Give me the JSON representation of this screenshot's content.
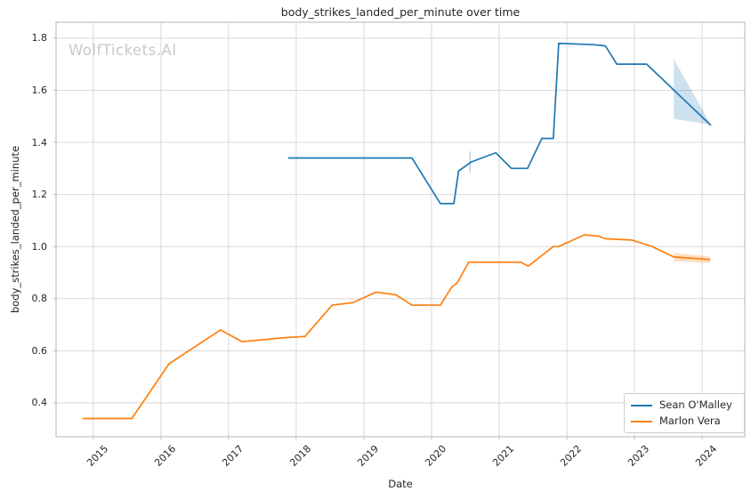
{
  "watermark": "WolfTickets.AI",
  "chart_data": {
    "type": "line",
    "title": "body_strikes_landed_per_minute over time",
    "xlabel": "Date",
    "ylabel": "body_strikes_landed_per_minute",
    "grid": true,
    "legend_position": "lower right",
    "xlim": [
      2014.45,
      2024.63
    ],
    "ylim": [
      0.27,
      1.861
    ],
    "x_ticks": [
      2015,
      2016,
      2017,
      2018,
      2019,
      2020,
      2021,
      2022,
      2023,
      2024
    ],
    "y_ticks": [
      0.4,
      0.6,
      0.8,
      1.0,
      1.2,
      1.4,
      1.6,
      1.8
    ],
    "colors": {
      "background": "#ffffff",
      "grid": "#d8d8d8",
      "spine": "#c7c7c7",
      "tick_mark": "#bdbdbd",
      "text": "#262626",
      "watermark": "#c9c9c9"
    },
    "series": [
      {
        "name": "Sean O'Malley",
        "color": "#1f77b4",
        "points": [
          [
            2017.88,
            1.34
          ],
          [
            2019.71,
            1.34
          ],
          [
            2020.13,
            1.165
          ],
          [
            2020.33,
            1.165
          ],
          [
            2020.4,
            1.29
          ],
          [
            2020.59,
            1.325
          ],
          [
            2020.95,
            1.36
          ],
          [
            2021.18,
            1.3
          ],
          [
            2021.42,
            1.3
          ],
          [
            2021.63,
            1.415
          ],
          [
            2021.8,
            1.415
          ],
          [
            2021.88,
            1.78
          ],
          [
            2022.39,
            1.775
          ],
          [
            2022.57,
            1.77
          ],
          [
            2022.74,
            1.7
          ],
          [
            2023.18,
            1.7
          ],
          [
            2024.13,
            1.465
          ]
        ]
      },
      {
        "name": "Marlon Vera",
        "color": "#ff7f0e",
        "points": [
          [
            2014.84,
            0.34
          ],
          [
            2015.57,
            0.34
          ],
          [
            2016.12,
            0.55
          ],
          [
            2016.88,
            0.68
          ],
          [
            2017.2,
            0.635
          ],
          [
            2017.82,
            0.65
          ],
          [
            2018.13,
            0.655
          ],
          [
            2018.53,
            0.775
          ],
          [
            2018.84,
            0.785
          ],
          [
            2019.18,
            0.825
          ],
          [
            2019.47,
            0.815
          ],
          [
            2019.71,
            0.775
          ],
          [
            2020.13,
            0.775
          ],
          [
            2020.3,
            0.845
          ],
          [
            2020.38,
            0.86
          ],
          [
            2020.55,
            0.94
          ],
          [
            2021.32,
            0.94
          ],
          [
            2021.43,
            0.925
          ],
          [
            2021.8,
            1.0
          ],
          [
            2021.88,
            1.0
          ],
          [
            2022.26,
            1.045
          ],
          [
            2022.47,
            1.04
          ],
          [
            2022.57,
            1.03
          ],
          [
            2022.96,
            1.025
          ],
          [
            2023.26,
            1.0
          ],
          [
            2023.58,
            0.96
          ],
          [
            2024.12,
            0.95
          ]
        ]
      }
    ],
    "bands": [
      {
        "series": "Sean O'Malley",
        "color": "#1f77b4",
        "opacity": 0.22,
        "points": [
          [
            2023.58,
            1.72
          ],
          [
            2024.13,
            1.468
          ],
          [
            2023.58,
            1.49
          ]
        ]
      },
      {
        "series": "Marlon Vera",
        "color": "#ff7f0e",
        "opacity": 0.25,
        "points": [
          [
            2023.58,
            0.975
          ],
          [
            2024.12,
            0.962
          ],
          [
            2024.12,
            0.936
          ],
          [
            2023.58,
            0.944
          ]
        ]
      }
    ],
    "errorbars": [
      {
        "series": "Sean O'Malley",
        "color": "#1f77b4",
        "opacity": 0.35,
        "x": 2020.57,
        "y_low": 1.285,
        "y_high": 1.365
      }
    ]
  }
}
